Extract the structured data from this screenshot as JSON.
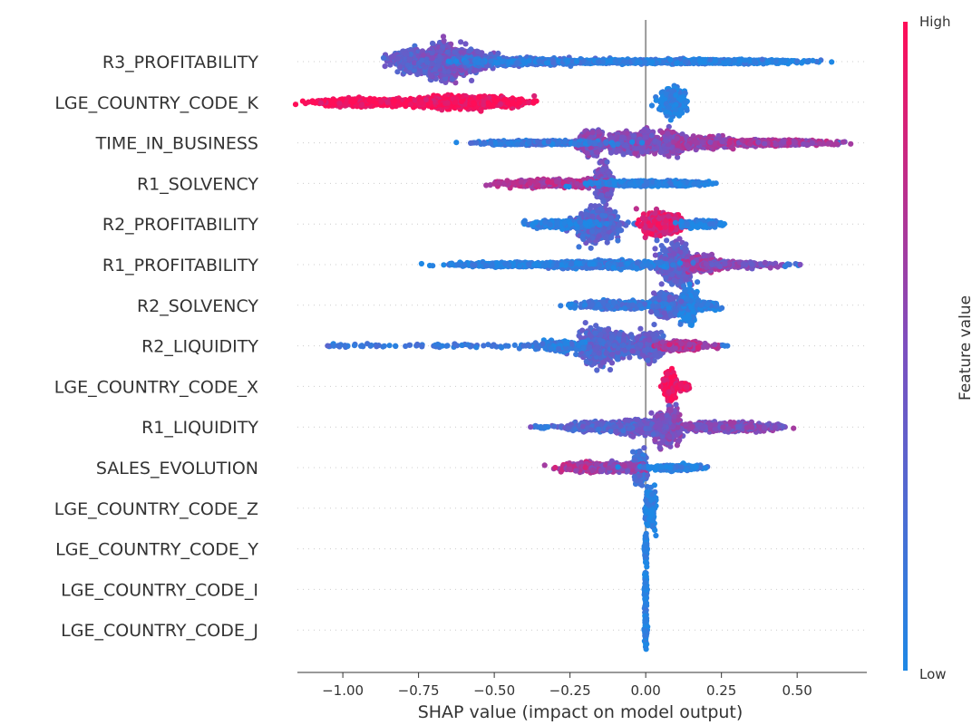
{
  "chart_data": {
    "type": "beeswarm",
    "xlabel": "SHAP value (impact on model output)",
    "x_ticks": [
      -1.0,
      -0.75,
      -0.5,
      -0.25,
      0.0,
      0.25,
      0.5
    ],
    "x_tick_labels": [
      "−1.00",
      "−0.75",
      "−0.50",
      "−0.25",
      "0.00",
      "0.25",
      "0.50"
    ],
    "xlim": [
      -1.15,
      0.73
    ],
    "colorbar": {
      "title": "Feature value",
      "high_label": "High",
      "low_label": "Low",
      "low_color": "#1e88e5",
      "high_color": "#ff0d57"
    },
    "features": [
      {
        "name": "R3_PROFITABILITY",
        "range": [
          -0.84,
          0.42
        ],
        "clusters": [
          {
            "x": -0.66,
            "w": 0.05,
            "h": 22,
            "c": 0.45
          },
          {
            "x": -0.77,
            "w": 0.05,
            "h": 14,
            "c": 0.35
          },
          {
            "x": -0.62,
            "w": 0.08,
            "h": 12,
            "c": 0.4
          },
          {
            "x": -0.45,
            "w": 0.15,
            "h": 5,
            "c": 0.2
          },
          {
            "x": -0.05,
            "w": 0.35,
            "h": 3,
            "c": 0.08
          },
          {
            "x": 0.25,
            "w": 0.2,
            "h": 3,
            "c": 0.05
          }
        ]
      },
      {
        "name": "LGE_COUNTRY_CODE_K",
        "range": [
          -1.08,
          -0.42
        ],
        "clusters": [
          {
            "x": -0.62,
            "w": 0.12,
            "h": 8,
            "c": 0.98
          },
          {
            "x": -0.95,
            "w": 0.1,
            "h": 5,
            "c": 0.98
          },
          {
            "x": -0.5,
            "w": 0.08,
            "h": 6,
            "c": 0.98
          },
          {
            "x": -0.78,
            "w": 0.12,
            "h": 4,
            "c": 0.98
          },
          {
            "x": 0.09,
            "w": 0.03,
            "h": 18,
            "c": 0.02
          }
        ]
      },
      {
        "name": "TIME_IN_BUSINESS",
        "range": [
          -0.52,
          0.64
        ],
        "clusters": [
          {
            "x": -0.18,
            "w": 0.03,
            "h": 16,
            "c": 0.5
          },
          {
            "x": -0.08,
            "w": 0.03,
            "h": 14,
            "c": 0.5
          },
          {
            "x": 0.0,
            "w": 0.03,
            "h": 14,
            "c": 0.5
          },
          {
            "x": 0.09,
            "w": 0.03,
            "h": 14,
            "c": 0.55
          },
          {
            "x": 0.2,
            "w": 0.06,
            "h": 8,
            "c": 0.6
          },
          {
            "x": 0.4,
            "w": 0.15,
            "h": 4,
            "c": 0.65
          },
          {
            "x": -0.35,
            "w": 0.15,
            "h": 3,
            "c": 0.15
          }
        ]
      },
      {
        "name": "R1_SOLVENCY",
        "range": [
          -0.49,
          0.2
        ],
        "clusters": [
          {
            "x": -0.14,
            "w": 0.02,
            "h": 22,
            "c": 0.45
          },
          {
            "x": -0.3,
            "w": 0.12,
            "h": 5,
            "c": 0.7
          },
          {
            "x": -0.02,
            "w": 0.12,
            "h": 4,
            "c": 0.05
          },
          {
            "x": 0.12,
            "w": 0.06,
            "h": 3,
            "c": 0.05
          }
        ]
      },
      {
        "name": "R2_PROFITABILITY",
        "range": [
          -0.38,
          0.24
        ],
        "clusters": [
          {
            "x": -0.16,
            "w": 0.05,
            "h": 20,
            "c": 0.3
          },
          {
            "x": 0.03,
            "w": 0.03,
            "h": 14,
            "c": 0.85
          },
          {
            "x": 0.08,
            "w": 0.03,
            "h": 12,
            "c": 0.85
          },
          {
            "x": -0.28,
            "w": 0.08,
            "h": 5,
            "c": 0.05
          },
          {
            "x": 0.18,
            "w": 0.05,
            "h": 5,
            "c": 0.05
          }
        ]
      },
      {
        "name": "R1_PROFITABILITY",
        "range": [
          -0.65,
          0.51
        ],
        "clusters": [
          {
            "x": 0.1,
            "w": 0.04,
            "h": 24,
            "c": 0.35
          },
          {
            "x": 0.18,
            "w": 0.04,
            "h": 10,
            "c": 0.6
          },
          {
            "x": -0.15,
            "w": 0.15,
            "h": 5,
            "c": 0.1
          },
          {
            "x": -0.45,
            "w": 0.15,
            "h": 3,
            "c": 0.05
          },
          {
            "x": 0.3,
            "w": 0.08,
            "h": 4,
            "c": 0.5
          }
        ]
      },
      {
        "name": "R2_SOLVENCY",
        "range": [
          -0.25,
          0.23
        ],
        "clusters": [
          {
            "x": 0.14,
            "w": 0.02,
            "h": 22,
            "c": 0.05
          },
          {
            "x": 0.06,
            "w": 0.03,
            "h": 16,
            "c": 0.3
          },
          {
            "x": -0.1,
            "w": 0.1,
            "h": 5,
            "c": 0.15
          },
          {
            "x": 0.2,
            "w": 0.03,
            "h": 5,
            "c": 0.05
          }
        ]
      },
      {
        "name": "R2_LIQUIDITY",
        "range": [
          -1.05,
          0.27
        ],
        "clusters": [
          {
            "x": -0.16,
            "w": 0.04,
            "h": 22,
            "c": 0.3
          },
          {
            "x": -0.09,
            "w": 0.03,
            "h": 16,
            "c": 0.3
          },
          {
            "x": 0.01,
            "w": 0.03,
            "h": 18,
            "c": 0.35
          },
          {
            "x": 0.12,
            "w": 0.06,
            "h": 6,
            "c": 0.7
          },
          {
            "x": -0.28,
            "w": 0.05,
            "h": 6,
            "c": 0.1
          }
        ]
      },
      {
        "name": "LGE_COUNTRY_CODE_X",
        "range": [
          0.05,
          0.14
        ],
        "clusters": [
          {
            "x": 0.08,
            "w": 0.015,
            "h": 20,
            "c": 0.97
          },
          {
            "x": 0.12,
            "w": 0.02,
            "h": 5,
            "c": 0.9
          }
        ]
      },
      {
        "name": "R1_LIQUIDITY",
        "range": [
          -0.38,
          0.46
        ],
        "clusters": [
          {
            "x": 0.07,
            "w": 0.03,
            "h": 22,
            "c": 0.5
          },
          {
            "x": -0.02,
            "w": 0.06,
            "h": 10,
            "c": 0.4
          },
          {
            "x": -0.15,
            "w": 0.08,
            "h": 6,
            "c": 0.3
          },
          {
            "x": 0.25,
            "w": 0.1,
            "h": 6,
            "c": 0.5
          },
          {
            "x": 0.4,
            "w": 0.05,
            "h": 3,
            "c": 0.5
          }
        ]
      },
      {
        "name": "SALES_EVOLUTION",
        "range": [
          -0.26,
          0.18
        ],
        "clusters": [
          {
            "x": -0.02,
            "w": 0.015,
            "h": 20,
            "c": 0.2
          },
          {
            "x": -0.2,
            "w": 0.06,
            "h": 6,
            "c": 0.7
          },
          {
            "x": -0.09,
            "w": 0.06,
            "h": 6,
            "c": 0.55
          },
          {
            "x": 0.1,
            "w": 0.07,
            "h": 4,
            "c": 0.05
          }
        ]
      },
      {
        "name": "LGE_COUNTRY_CODE_Z",
        "range": [
          0.0,
          0.03
        ],
        "clusters": [
          {
            "x": 0.015,
            "w": 0.012,
            "h": 26,
            "c": 0.02
          }
        ]
      },
      {
        "name": "LGE_COUNTRY_CODE_Y",
        "range": [
          -0.005,
          0.005
        ],
        "clusters": [
          {
            "x": 0.0,
            "w": 0.003,
            "h": 26,
            "c": 0.02
          }
        ]
      },
      {
        "name": "LGE_COUNTRY_CODE_I",
        "range": [
          -0.005,
          0.005
        ],
        "clusters": [
          {
            "x": 0.0,
            "w": 0.003,
            "h": 26,
            "c": 0.02
          }
        ]
      },
      {
        "name": "LGE_COUNTRY_CODE_J",
        "range": [
          -0.005,
          0.005
        ],
        "clusters": [
          {
            "x": 0.0,
            "w": 0.003,
            "h": 26,
            "c": 0.02
          }
        ]
      }
    ]
  }
}
